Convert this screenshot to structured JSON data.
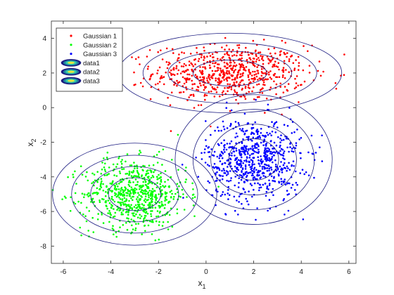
{
  "chart_data": {
    "type": "scatter",
    "title": "",
    "xlabel": "x1",
    "ylabel": "x2",
    "xlabel_main": "x",
    "xlabel_sub": "1",
    "ylabel_main": "x",
    "ylabel_sub": "2",
    "xlim": [
      -6.5,
      6.3
    ],
    "ylim": [
      -9,
      5
    ],
    "xticks": [
      -6,
      -4,
      -2,
      0,
      2,
      4,
      6
    ],
    "yticks": [
      -8,
      -6,
      -4,
      -2,
      0,
      2,
      4
    ],
    "grid": false,
    "legend_position": "top-left",
    "series": [
      {
        "name": "Gaussian 1",
        "color": "#ff0000",
        "mean": [
          1,
          2
        ],
        "std": [
          1.6,
          0.8
        ],
        "n": 700
      },
      {
        "name": "Gaussian 2",
        "color": "#00ff00",
        "mean": [
          -3,
          -5
        ],
        "std": [
          1.1,
          1.0
        ],
        "n": 700
      },
      {
        "name": "Gaussian 3",
        "color": "#0000ff",
        "mean": [
          2,
          -3
        ],
        "std": [
          1.0,
          1.2
        ],
        "n": 700
      }
    ],
    "contours": [
      {
        "name": "data1",
        "center": [
          1,
          2
        ],
        "radii": [
          [
            1.55,
            0.75
          ],
          [
            2.6,
            1.25
          ],
          [
            3.65,
            1.75
          ],
          [
            4.7,
            2.3
          ]
        ]
      },
      {
        "name": "data2",
        "center": [
          -3,
          -5
        ],
        "radii": [
          [
            1.1,
            0.95
          ],
          [
            1.85,
            1.6
          ],
          [
            2.65,
            2.25
          ],
          [
            3.45,
            2.95
          ]
        ]
      },
      {
        "name": "data3",
        "center": [
          2,
          -3
        ],
        "radii": [
          [
            1.05,
            1.2
          ],
          [
            1.8,
            2.05
          ],
          [
            2.55,
            2.9
          ],
          [
            3.3,
            3.75
          ]
        ]
      }
    ],
    "contour_color": "#1a1a80",
    "contour_legend_colors": [
      "#1a1a80",
      "#1f7fa0",
      "#33ccaa",
      "#e8e840"
    ]
  }
}
